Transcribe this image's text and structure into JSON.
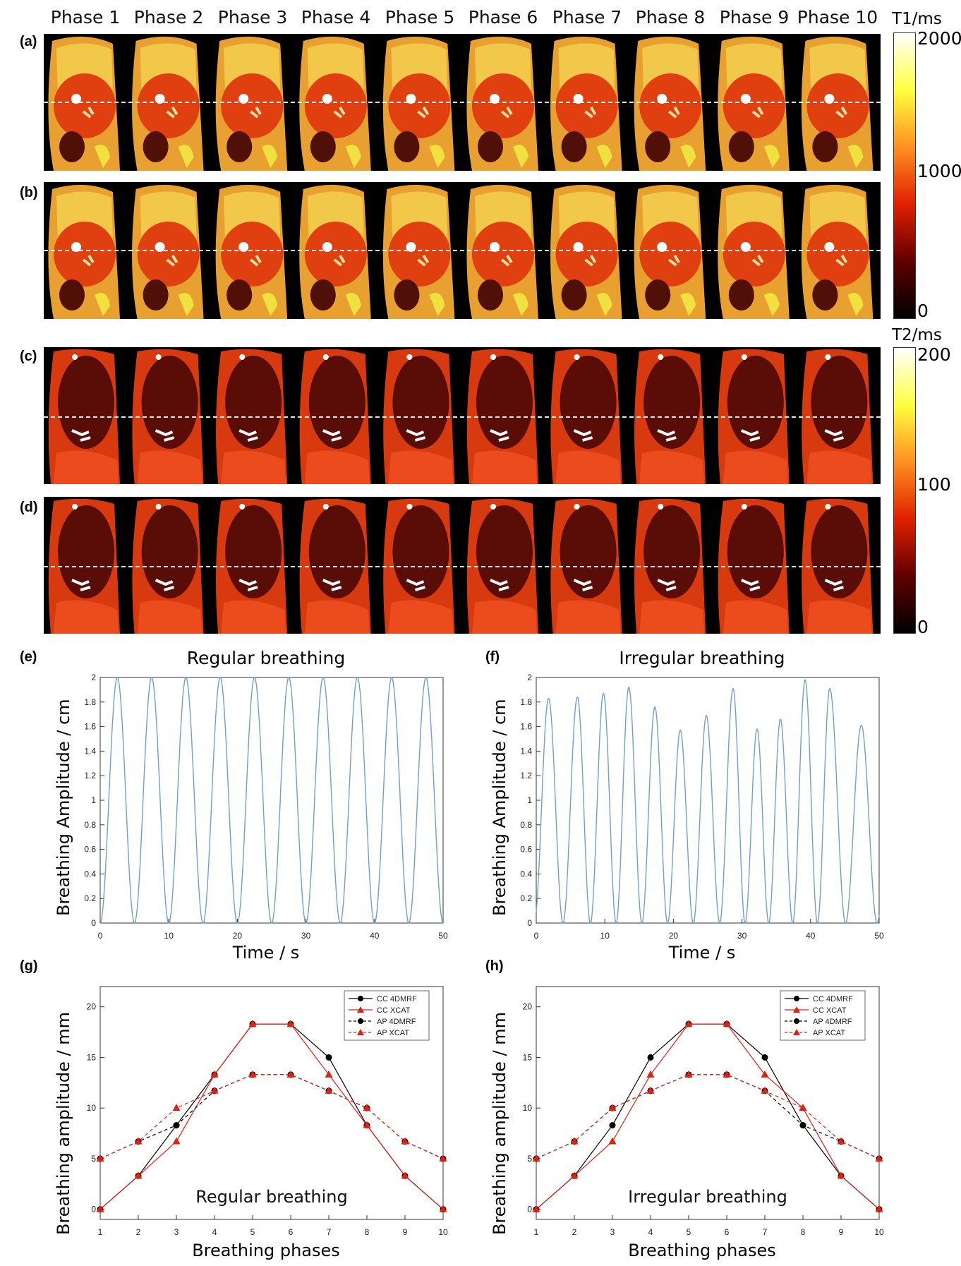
{
  "phase_labels": [
    "Phase 1",
    "Phase 2",
    "Phase 3",
    "Phase 4",
    "Phase 5",
    "Phase 6",
    "Phase 7",
    "Phase 8",
    "Phase 9",
    "Phase 10"
  ],
  "panel_letters": {
    "a": "(a)",
    "b": "(b)",
    "c": "(c)",
    "d": "(d)",
    "e": "(e)",
    "f": "(f)",
    "g": "(g)",
    "h": "(h)"
  },
  "colorbars": {
    "t1": {
      "title": "T1/ms",
      "ticks": [
        "2000",
        "1000",
        "0"
      ],
      "colors": [
        "#ffffff",
        "#ffff40",
        "#ff9020",
        "#e02000",
        "#600000",
        "#000000"
      ]
    },
    "t2": {
      "title": "T2/ms",
      "ticks": [
        "200",
        "100",
        "0"
      ],
      "colors": [
        "#ffffff",
        "#ffff40",
        "#ff9020",
        "#e02000",
        "#600000",
        "#000000"
      ]
    }
  },
  "image_rows": [
    {
      "id": "a",
      "map": "T1"
    },
    {
      "id": "b",
      "map": "T1"
    },
    {
      "id": "c",
      "map": "T2"
    },
    {
      "id": "d",
      "map": "T2"
    }
  ],
  "line_color": "#6fa0c8",
  "chart_data": [
    {
      "id": "e",
      "type": "line",
      "title": "Regular breathing",
      "xlabel": "Time / s",
      "ylabel": "Breathing Amplitude / cm",
      "xlim": [
        0,
        50
      ],
      "ylim": [
        0,
        2
      ],
      "xticks": [
        "0",
        "10",
        "20",
        "30",
        "40",
        "50"
      ],
      "yticks": [
        "0",
        "0.2",
        "0.4",
        "0.6",
        "0.8",
        "1",
        "1.2",
        "1.4",
        "1.6",
        "1.8",
        "2"
      ],
      "series": [
        {
          "cycle_period_s": 5,
          "peak_times_s": [
            2.5,
            7.5,
            12.5,
            17.5,
            22.5,
            27.5,
            32.5,
            37.5,
            42.5,
            47.5
          ],
          "peak_amplitudes_cm": [
            2,
            2,
            2,
            2,
            2,
            2,
            2,
            2,
            2,
            2
          ]
        }
      ]
    },
    {
      "id": "f",
      "type": "line",
      "title": "Irregular breathing",
      "xlabel": "Time / s",
      "ylabel": "Breathing Amplitude / cm",
      "xlim": [
        0,
        50
      ],
      "ylim": [
        0,
        2
      ],
      "xticks": [
        "0",
        "10",
        "20",
        "30",
        "40",
        "50"
      ],
      "yticks": [
        "0",
        "0.2",
        "0.4",
        "0.6",
        "0.8",
        "1",
        "1.2",
        "1.4",
        "1.6",
        "1.8",
        "2"
      ],
      "series": [
        {
          "peak_times_s": [
            1.8,
            6.0,
            9.8,
            13.5,
            17.3,
            21.0,
            24.8,
            28.7,
            32.2,
            35.6,
            39.2,
            42.8,
            47.4
          ],
          "peak_amplitudes_cm": [
            1.83,
            1.84,
            1.87,
            1.92,
            1.76,
            1.57,
            1.69,
            1.91,
            1.58,
            1.66,
            1.98,
            1.91,
            1.61
          ]
        }
      ]
    },
    {
      "id": "g",
      "type": "line",
      "annotation": "Regular breathing",
      "xlabel": "Breathing phases",
      "ylabel": "Breathing amplitude / mm",
      "xlim": [
        1,
        10
      ],
      "ylim": [
        -1,
        22
      ],
      "xticks": [
        "1",
        "2",
        "3",
        "4",
        "5",
        "6",
        "7",
        "8",
        "9",
        "10"
      ],
      "yticks": [
        "0",
        "5",
        "10",
        "15",
        "20"
      ],
      "x": [
        1,
        2,
        3,
        4,
        5,
        6,
        7,
        8,
        9,
        10
      ],
      "series": [
        {
          "name": "CC 4DMRF",
          "color": "#000000",
          "dash": false,
          "marker": "circle",
          "values": [
            0,
            3.3,
            8.3,
            13.3,
            18.3,
            18.3,
            15,
            8.3,
            3.3,
            0
          ]
        },
        {
          "name": "CC XCAT",
          "color": "#e02010",
          "dash": false,
          "marker": "triangle",
          "values": [
            0,
            3.3,
            6.7,
            13.3,
            18.3,
            18.3,
            13.3,
            8.3,
            3.3,
            0
          ]
        },
        {
          "name": "AP 4DMRF",
          "color": "#000000",
          "dash": true,
          "marker": "circle",
          "values": [
            5,
            6.7,
            8.3,
            11.7,
            13.3,
            13.3,
            11.7,
            10,
            6.7,
            5
          ]
        },
        {
          "name": "AP XCAT",
          "color": "#e02010",
          "dash": true,
          "marker": "triangle",
          "values": [
            5,
            6.7,
            10,
            11.7,
            13.3,
            13.3,
            11.7,
            10,
            6.7,
            5
          ]
        }
      ]
    },
    {
      "id": "h",
      "type": "line",
      "annotation": "Irregular breathing",
      "xlabel": "Breathing phases",
      "ylabel": "Breathing amplitude / mm",
      "xlim": [
        1,
        10
      ],
      "ylim": [
        -1,
        22
      ],
      "xticks": [
        "1",
        "2",
        "3",
        "4",
        "5",
        "6",
        "7",
        "8",
        "9",
        "10"
      ],
      "yticks": [
        "0",
        "5",
        "10",
        "15",
        "20"
      ],
      "x": [
        1,
        2,
        3,
        4,
        5,
        6,
        7,
        8,
        9,
        10
      ],
      "series": [
        {
          "name": "CC 4DMRF",
          "color": "#000000",
          "dash": false,
          "marker": "circle",
          "values": [
            0,
            3.3,
            8.3,
            15,
            18.3,
            18.3,
            15,
            8.3,
            3.3,
            0
          ]
        },
        {
          "name": "CC XCAT",
          "color": "#e02010",
          "dash": false,
          "marker": "triangle",
          "values": [
            0,
            3.3,
            6.7,
            13.3,
            18.3,
            18.3,
            13.3,
            10,
            3.3,
            0
          ]
        },
        {
          "name": "AP 4DMRF",
          "color": "#000000",
          "dash": true,
          "marker": "circle",
          "values": [
            5,
            6.7,
            10,
            11.7,
            13.3,
            13.3,
            11.7,
            8.3,
            6.7,
            5
          ]
        },
        {
          "name": "AP XCAT",
          "color": "#e02010",
          "dash": true,
          "marker": "triangle",
          "values": [
            5,
            6.7,
            10,
            11.7,
            13.3,
            13.3,
            11.7,
            10,
            6.7,
            5
          ]
        }
      ]
    }
  ]
}
